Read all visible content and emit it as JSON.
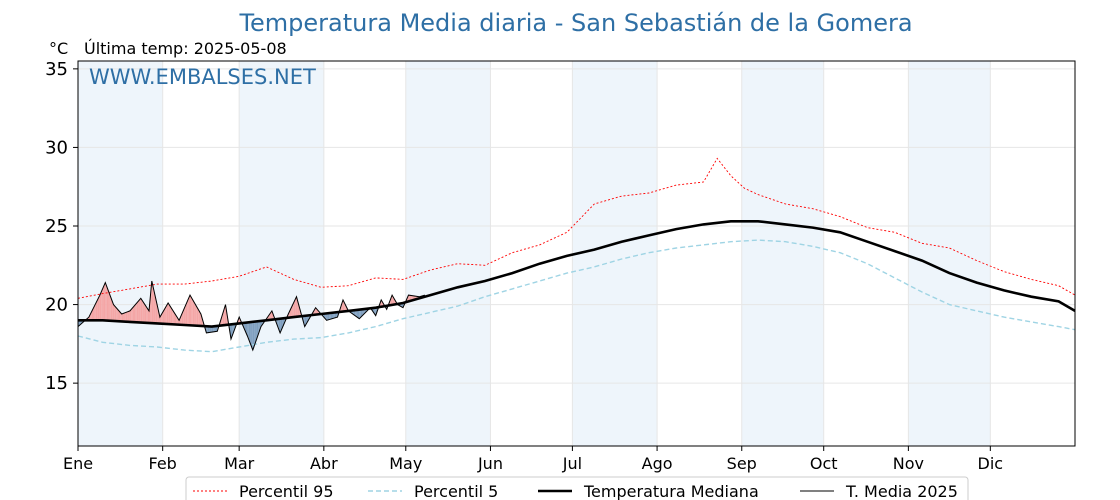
{
  "chart_data": {
    "type": "line",
    "title": "Temperatura Media diaria - San Sebastián de la Gomera",
    "unit_label": "°C",
    "last_temp_label": "Última temp: 2025-05-08",
    "watermark": "WWW.EMBALSES.NET",
    "ylim": [
      11,
      35.5
    ],
    "yticks": [
      15,
      20,
      25,
      30,
      35
    ],
    "xlim": [
      1,
      366
    ],
    "months": [
      {
        "label": "Ene",
        "start": 1
      },
      {
        "label": "Feb",
        "start": 32
      },
      {
        "label": "Mar",
        "start": 60
      },
      {
        "label": "Abr",
        "start": 91
      },
      {
        "label": "May",
        "start": 121
      },
      {
        "label": "Jun",
        "start": 152
      },
      {
        "label": "Jul",
        "start": 182
      },
      {
        "label": "Ago",
        "start": 213
      },
      {
        "label": "Sep",
        "start": 244
      },
      {
        "label": "Oct",
        "start": 274
      },
      {
        "label": "Nov",
        "start": 305
      },
      {
        "label": "Dic",
        "start": 335
      }
    ],
    "shaded_months": [
      "Ene",
      "Mar",
      "May",
      "Jul",
      "Sep",
      "Nov"
    ],
    "grid": true,
    "legend_position": "bottom-center",
    "colors": {
      "p95": "#ff0000",
      "p5": "#9fd4e4",
      "median": "#000000",
      "current": "#000000",
      "above_fill": "#f4a6a6",
      "below_fill": "#7f9fbf",
      "title": "#2e6fa5",
      "shade": "#eef5fb"
    },
    "series": [
      {
        "name": "Percentil 95",
        "key": "p95",
        "style": "dotted",
        "points": [
          [
            1,
            20.4
          ],
          [
            10,
            20.7
          ],
          [
            20,
            21.0
          ],
          [
            30,
            21.3
          ],
          [
            40,
            21.3
          ],
          [
            50,
            21.5
          ],
          [
            60,
            21.8
          ],
          [
            70,
            22.4
          ],
          [
            80,
            21.6
          ],
          [
            90,
            21.1
          ],
          [
            100,
            21.2
          ],
          [
            110,
            21.7
          ],
          [
            120,
            21.6
          ],
          [
            130,
            22.2
          ],
          [
            140,
            22.6
          ],
          [
            150,
            22.5
          ],
          [
            160,
            23.3
          ],
          [
            170,
            23.8
          ],
          [
            180,
            24.6
          ],
          [
            190,
            26.4
          ],
          [
            200,
            26.9
          ],
          [
            210,
            27.1
          ],
          [
            220,
            27.6
          ],
          [
            230,
            27.8
          ],
          [
            235,
            29.3
          ],
          [
            240,
            28.2
          ],
          [
            245,
            27.4
          ],
          [
            250,
            27.0
          ],
          [
            260,
            26.4
          ],
          [
            270,
            26.1
          ],
          [
            280,
            25.6
          ],
          [
            290,
            24.9
          ],
          [
            300,
            24.6
          ],
          [
            310,
            23.9
          ],
          [
            320,
            23.6
          ],
          [
            330,
            22.8
          ],
          [
            340,
            22.1
          ],
          [
            350,
            21.6
          ],
          [
            360,
            21.2
          ],
          [
            366,
            20.6
          ]
        ]
      },
      {
        "name": "Percentil 5",
        "key": "p5",
        "style": "dashed",
        "points": [
          [
            1,
            18.0
          ],
          [
            10,
            17.6
          ],
          [
            20,
            17.4
          ],
          [
            30,
            17.3
          ],
          [
            40,
            17.1
          ],
          [
            50,
            17.0
          ],
          [
            60,
            17.3
          ],
          [
            70,
            17.6
          ],
          [
            80,
            17.8
          ],
          [
            90,
            17.9
          ],
          [
            100,
            18.2
          ],
          [
            110,
            18.6
          ],
          [
            120,
            19.1
          ],
          [
            130,
            19.5
          ],
          [
            140,
            19.9
          ],
          [
            150,
            20.5
          ],
          [
            160,
            21.0
          ],
          [
            170,
            21.5
          ],
          [
            180,
            22.0
          ],
          [
            190,
            22.4
          ],
          [
            200,
            22.9
          ],
          [
            210,
            23.3
          ],
          [
            220,
            23.6
          ],
          [
            230,
            23.8
          ],
          [
            240,
            24.0
          ],
          [
            250,
            24.1
          ],
          [
            260,
            24.0
          ],
          [
            270,
            23.7
          ],
          [
            280,
            23.3
          ],
          [
            290,
            22.6
          ],
          [
            300,
            21.7
          ],
          [
            310,
            20.8
          ],
          [
            320,
            20.0
          ],
          [
            330,
            19.6
          ],
          [
            340,
            19.2
          ],
          [
            350,
            18.9
          ],
          [
            360,
            18.6
          ],
          [
            366,
            18.4
          ]
        ]
      },
      {
        "name": "Temperatura Mediana",
        "key": "median",
        "style": "thick",
        "points": [
          [
            1,
            19.0
          ],
          [
            10,
            19.0
          ],
          [
            20,
            18.9
          ],
          [
            30,
            18.8
          ],
          [
            40,
            18.7
          ],
          [
            50,
            18.6
          ],
          [
            60,
            18.8
          ],
          [
            70,
            19.0
          ],
          [
            80,
            19.2
          ],
          [
            90,
            19.4
          ],
          [
            100,
            19.6
          ],
          [
            110,
            19.8
          ],
          [
            120,
            20.1
          ],
          [
            130,
            20.6
          ],
          [
            140,
            21.1
          ],
          [
            150,
            21.5
          ],
          [
            160,
            22.0
          ],
          [
            170,
            22.6
          ],
          [
            180,
            23.1
          ],
          [
            190,
            23.5
          ],
          [
            200,
            24.0
          ],
          [
            210,
            24.4
          ],
          [
            220,
            24.8
          ],
          [
            230,
            25.1
          ],
          [
            240,
            25.3
          ],
          [
            250,
            25.3
          ],
          [
            260,
            25.1
          ],
          [
            270,
            24.9
          ],
          [
            280,
            24.6
          ],
          [
            290,
            24.0
          ],
          [
            300,
            23.4
          ],
          [
            310,
            22.8
          ],
          [
            320,
            22.0
          ],
          [
            330,
            21.4
          ],
          [
            340,
            20.9
          ],
          [
            350,
            20.5
          ],
          [
            360,
            20.2
          ],
          [
            366,
            19.6
          ]
        ]
      },
      {
        "name": "T. Media 2025",
        "key": "current",
        "style": "thin",
        "points": [
          [
            1,
            18.6
          ],
          [
            5,
            19.2
          ],
          [
            9,
            20.6
          ],
          [
            11,
            21.4
          ],
          [
            14,
            20.0
          ],
          [
            17,
            19.4
          ],
          [
            20,
            19.6
          ],
          [
            24,
            20.4
          ],
          [
            27,
            19.6
          ],
          [
            28,
            21.5
          ],
          [
            31,
            19.2
          ],
          [
            34,
            20.1
          ],
          [
            38,
            19.0
          ],
          [
            42,
            20.6
          ],
          [
            46,
            19.4
          ],
          [
            48,
            18.2
          ],
          [
            52,
            18.3
          ],
          [
            55,
            20.0
          ],
          [
            57,
            17.8
          ],
          [
            60,
            19.2
          ],
          [
            63,
            18.0
          ],
          [
            65,
            17.1
          ],
          [
            68,
            18.6
          ],
          [
            72,
            19.6
          ],
          [
            75,
            18.2
          ],
          [
            78,
            19.4
          ],
          [
            81,
            20.5
          ],
          [
            84,
            18.6
          ],
          [
            88,
            19.8
          ],
          [
            92,
            19.0
          ],
          [
            96,
            19.2
          ],
          [
            98,
            20.3
          ],
          [
            100,
            19.6
          ],
          [
            104,
            19.1
          ],
          [
            108,
            19.8
          ],
          [
            110,
            19.3
          ],
          [
            112,
            20.3
          ],
          [
            114,
            19.7
          ],
          [
            116,
            20.6
          ],
          [
            118,
            20.0
          ],
          [
            120,
            19.8
          ],
          [
            122,
            20.6
          ],
          [
            126,
            20.5
          ],
          [
            128,
            20.6
          ]
        ]
      }
    ]
  },
  "legend": [
    {
      "label": "Percentil 95",
      "key": "p95"
    },
    {
      "label": "Percentil 5",
      "key": "p5"
    },
    {
      "label": "Temperatura Mediana",
      "key": "median"
    },
    {
      "label": "T. Media 2025",
      "key": "current"
    }
  ]
}
